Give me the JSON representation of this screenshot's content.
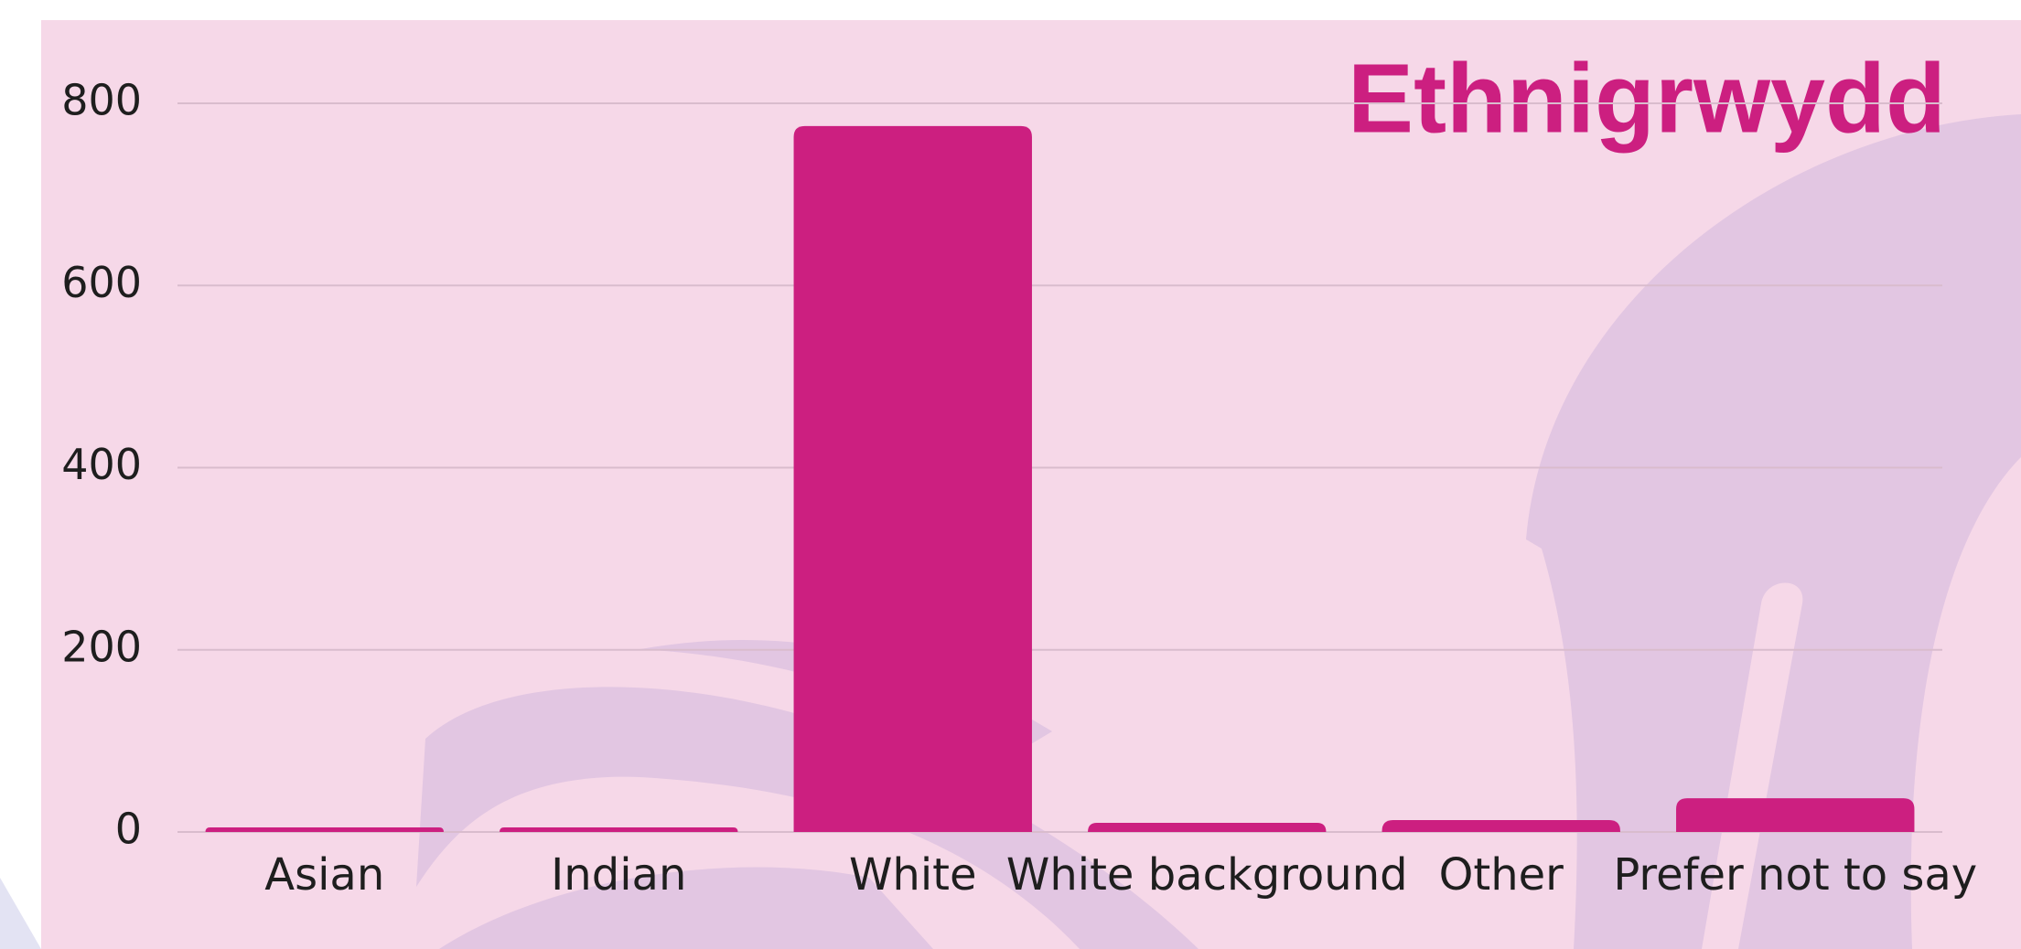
{
  "chart_data": {
    "type": "bar",
    "title": "Ethnigrwydd",
    "categories": [
      "Asian",
      "Indian",
      "White",
      "White background",
      "Other",
      "Prefer not to say"
    ],
    "values": [
      5,
      5,
      775,
      10,
      13,
      37
    ],
    "color": "#cc1f80",
    "ylim": [
      0,
      800
    ],
    "yticks": [
      0,
      200,
      400,
      600,
      800
    ],
    "grid": true
  }
}
